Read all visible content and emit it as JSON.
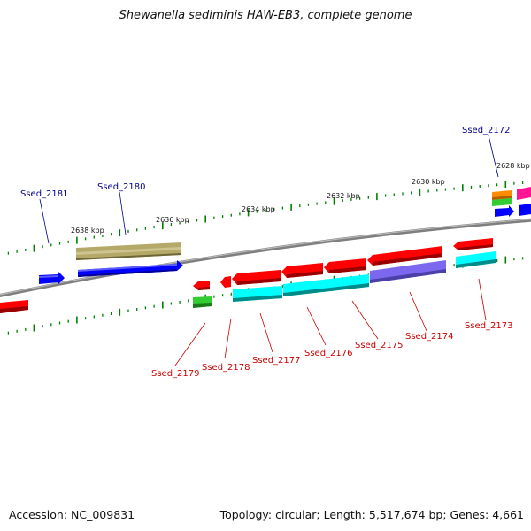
{
  "title": "Shewanella sediminis HAW-EB3, complete genome",
  "footer": {
    "accession": "Accession: NC_009831",
    "summary": "Topology: circular; Length: 5,517,674 bp; Genes: 4,661"
  },
  "scale": {
    "labels": [
      "2638 kbp",
      "2636 kbp",
      "2634 kbp",
      "2632 kbp",
      "2630 kbp",
      "2628 kbp"
    ]
  },
  "genes_plus": [
    "Ssed_2181",
    "Ssed_2180",
    "Ssed_2172"
  ],
  "genes_minus": [
    "Ssed_2179",
    "Ssed_2178",
    "Ssed_2177",
    "Ssed_2176",
    "Ssed_2175",
    "Ssed_2174",
    "Ssed_2173"
  ],
  "colors": {
    "plus_label": "#00008b",
    "minus_label": "#cc0000",
    "backbone": "#808080",
    "ticks": "#008000",
    "cds_forward": "#0000ff",
    "cds_reverse": "#ff0000",
    "olive": "#b5a96a",
    "cyan": "#00ffff",
    "purple": "#7b68ee",
    "green": "#33cc33",
    "orange": "#ff8c00",
    "magenta": "#ff1493"
  }
}
